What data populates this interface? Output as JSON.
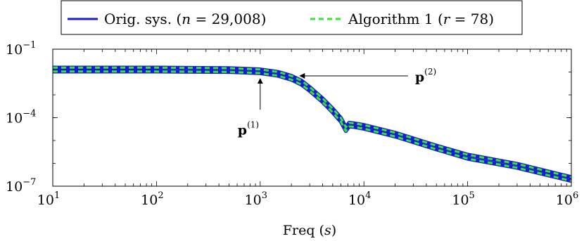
{
  "chart_data": {
    "type": "line",
    "title": "",
    "xlabel": "Freq (s)",
    "ylabel": "",
    "x_scale": "log",
    "y_scale": "log",
    "xlim": [
      10,
      1000000
    ],
    "ylim": [
      1e-07,
      0.1
    ],
    "x_ticks": [
      {
        "value": 10,
        "base": "10",
        "exp": "1"
      },
      {
        "value": 100,
        "base": "10",
        "exp": "2"
      },
      {
        "value": 1000,
        "base": "10",
        "exp": "3"
      },
      {
        "value": 10000,
        "base": "10",
        "exp": "4"
      },
      {
        "value": 100000,
        "base": "10",
        "exp": "5"
      },
      {
        "value": 1000000,
        "base": "10",
        "exp": "6"
      }
    ],
    "y_ticks": [
      {
        "value": 0.1,
        "base": "10",
        "exp": "−1"
      },
      {
        "value": 0.0001,
        "base": "10",
        "exp": "−4"
      },
      {
        "value": 1e-07,
        "base": "10",
        "exp": "−7"
      }
    ],
    "legend": {
      "placement": "top-center",
      "entries": [
        {
          "prefix": "Orig. sys. (",
          "var": "n",
          "suffix": " = 29,008)",
          "color": "#1a1ad6",
          "dash": "solid"
        },
        {
          "prefix": "Algorithm 1 (",
          "var": "r",
          "suffix": " = 78)",
          "color": "#33e633",
          "dash": "dashed"
        }
      ]
    },
    "series": [
      {
        "name": "Orig. sys. (n = 29,008)",
        "color": "#1a1ad6",
        "dash": "solid",
        "points": [
          [
            10,
            0.0155
          ],
          [
            100,
            0.0155
          ],
          [
            500,
            0.0148
          ],
          [
            1000,
            0.013
          ],
          [
            1500,
            0.01
          ],
          [
            2000,
            0.0068
          ],
          [
            2500,
            0.0042
          ],
          [
            3000,
            0.0022
          ],
          [
            4000,
            0.0007
          ],
          [
            5000,
            0.00025
          ],
          [
            6000,
            9.8e-05
          ],
          [
            6700,
            3.8e-05
          ],
          [
            7200,
            6e-05
          ],
          [
            7800,
            5.8e-05
          ],
          [
            10000,
            4.8e-05
          ],
          [
            20000,
            2.2e-05
          ],
          [
            50000,
            6e-06
          ],
          [
            100000,
            2.4e-06
          ],
          [
            300000,
            9.5e-07
          ],
          [
            1000000,
            2.5e-07
          ]
        ]
      },
      {
        "name": "Orig. sys. (n = 29,008)",
        "color": "#1a1ad6",
        "dash": "solid",
        "points": [
          [
            10,
            0.0105
          ],
          [
            100,
            0.0105
          ],
          [
            500,
            0.0101
          ],
          [
            1000,
            0.0089
          ],
          [
            1500,
            0.0068
          ],
          [
            2000,
            0.0046
          ],
          [
            2500,
            0.0028
          ],
          [
            3000,
            0.0015
          ],
          [
            4000,
            0.00048
          ],
          [
            5000,
            0.00017
          ],
          [
            6000,
            6.6e-05
          ],
          [
            6700,
            2.6e-05
          ],
          [
            7200,
            4.1e-05
          ],
          [
            7800,
            4e-05
          ],
          [
            10000,
            3.3e-05
          ],
          [
            20000,
            1.5e-05
          ],
          [
            50000,
            4.1e-06
          ],
          [
            100000,
            1.6e-06
          ],
          [
            300000,
            6.4e-07
          ],
          [
            1000000,
            1.7e-07
          ]
        ]
      },
      {
        "name": "Algorithm 1 (r = 78)",
        "color": "#33e633",
        "dash": "dashed",
        "points": [
          [
            10,
            0.0155
          ],
          [
            100,
            0.0155
          ],
          [
            500,
            0.0148
          ],
          [
            1000,
            0.013
          ],
          [
            1500,
            0.01
          ],
          [
            2000,
            0.0068
          ],
          [
            2500,
            0.0042
          ],
          [
            3000,
            0.0022
          ],
          [
            4000,
            0.0007
          ],
          [
            5000,
            0.00025
          ],
          [
            6000,
            9.8e-05
          ],
          [
            6700,
            3.8e-05
          ],
          [
            7200,
            6e-05
          ],
          [
            7800,
            5.8e-05
          ],
          [
            10000,
            4.8e-05
          ],
          [
            20000,
            2.2e-05
          ],
          [
            50000,
            6e-06
          ],
          [
            100000,
            2.4e-06
          ],
          [
            300000,
            9.5e-07
          ],
          [
            1000000,
            2.5e-07
          ]
        ]
      },
      {
        "name": "Algorithm 1 (r = 78)",
        "color": "#33e633",
        "dash": "dashed",
        "points": [
          [
            10,
            0.0105
          ],
          [
            100,
            0.0105
          ],
          [
            500,
            0.0101
          ],
          [
            1000,
            0.0089
          ],
          [
            1500,
            0.0068
          ],
          [
            2000,
            0.0046
          ],
          [
            2500,
            0.0028
          ],
          [
            3000,
            0.0015
          ],
          [
            4000,
            0.00048
          ],
          [
            5000,
            0.00017
          ],
          [
            6000,
            6.6e-05
          ],
          [
            6700,
            2.6e-05
          ],
          [
            7200,
            4.1e-05
          ],
          [
            7800,
            4e-05
          ],
          [
            10000,
            3.3e-05
          ],
          [
            20000,
            1.5e-05
          ],
          [
            50000,
            4.1e-06
          ],
          [
            100000,
            1.6e-06
          ],
          [
            300000,
            6.4e-07
          ],
          [
            1000000,
            1.7e-07
          ]
        ]
      }
    ],
    "annotations": [
      {
        "label": "p",
        "sup": "(1)",
        "point": [
          1000,
          0.0089
        ],
        "text_at": [
          1000,
          1.8e-05
        ]
      },
      {
        "label": "p",
        "sup": "(2)",
        "point": [
          2200,
          0.0068
        ],
        "text_at": [
          25000,
          0.0068
        ]
      }
    ]
  }
}
